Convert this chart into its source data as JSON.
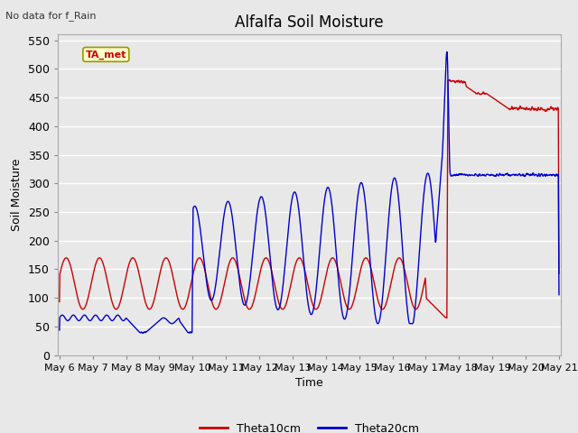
{
  "title": "Alfalfa Soil Moisture",
  "top_left_note": "No data for f_Rain",
  "ylabel": "Soil Moisture",
  "xlabel": "Time",
  "ylim": [
    0,
    560
  ],
  "yticks": [
    0,
    50,
    100,
    150,
    200,
    250,
    300,
    350,
    400,
    450,
    500,
    550
  ],
  "bg_color": "#e8e8e8",
  "plot_bg_color": "#e8e8e8",
  "grid_color": "#ffffff",
  "line1_color": "#cc0000",
  "line2_color": "#0000cc",
  "legend_label1": "Theta10cm",
  "legend_label2": "Theta20cm",
  "ta_met_label": "TA_met",
  "ta_met_bg": "#ffffcc",
  "ta_met_border": "#999900",
  "ta_met_text_color": "#cc0000",
  "x_start_day": 6,
  "x_end_day": 21,
  "xtick_days": [
    6,
    7,
    8,
    9,
    10,
    11,
    12,
    13,
    14,
    15,
    16,
    17,
    18,
    19,
    20,
    21
  ]
}
